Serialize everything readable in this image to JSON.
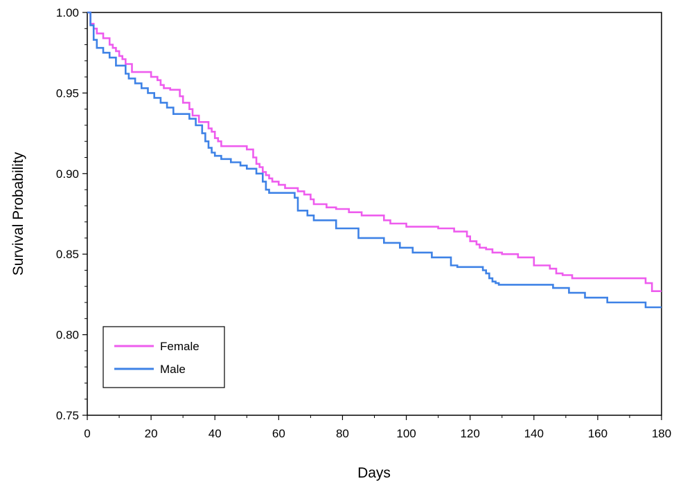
{
  "chart_data": {
    "type": "line",
    "title": "",
    "xlabel": "Days",
    "ylabel": "Survival Probability",
    "xlim": [
      0,
      180
    ],
    "ylim": [
      0.75,
      1.0
    ],
    "x_ticks": [
      0,
      20,
      40,
      60,
      80,
      100,
      120,
      140,
      160,
      180
    ],
    "y_ticks": [
      0.75,
      0.8,
      0.85,
      0.9,
      0.95,
      1.0
    ],
    "x_tick_labels": [
      "0",
      "20",
      "40",
      "60",
      "80",
      "100",
      "120",
      "140",
      "160",
      "180"
    ],
    "y_tick_labels": [
      "0.75",
      "0.80",
      "0.85",
      "0.90",
      "0.95",
      "1.00"
    ],
    "grid": false,
    "legend_position": "bottom-left",
    "step": true,
    "series": [
      {
        "name": "Female",
        "color": "#ee5cee",
        "x": [
          0,
          1,
          2,
          3,
          5,
          7,
          8,
          9,
          10,
          11,
          12,
          14,
          20,
          22,
          23,
          24,
          26,
          29,
          30,
          32,
          33,
          35,
          38,
          39,
          40,
          41,
          42,
          45,
          47,
          50,
          52,
          53,
          54,
          55,
          56,
          57,
          58,
          60,
          62,
          65,
          66,
          68,
          70,
          71,
          73,
          75,
          78,
          82,
          86,
          93,
          95,
          100,
          105,
          110,
          113,
          115,
          119,
          120,
          122,
          123,
          125,
          127,
          130,
          135,
          140,
          145,
          147,
          149,
          152,
          165,
          171,
          175,
          177,
          180
        ],
        "y": [
          1.0,
          0.993,
          0.99,
          0.987,
          0.984,
          0.98,
          0.978,
          0.976,
          0.973,
          0.971,
          0.968,
          0.963,
          0.96,
          0.958,
          0.955,
          0.953,
          0.952,
          0.948,
          0.944,
          0.94,
          0.936,
          0.932,
          0.928,
          0.926,
          0.922,
          0.92,
          0.917,
          0.917,
          0.917,
          0.915,
          0.91,
          0.906,
          0.904,
          0.901,
          0.899,
          0.897,
          0.895,
          0.893,
          0.891,
          0.891,
          0.889,
          0.887,
          0.884,
          0.881,
          0.881,
          0.879,
          0.878,
          0.876,
          0.874,
          0.871,
          0.869,
          0.867,
          0.867,
          0.866,
          0.866,
          0.864,
          0.861,
          0.858,
          0.856,
          0.854,
          0.853,
          0.851,
          0.85,
          0.848,
          0.843,
          0.841,
          0.838,
          0.837,
          0.835,
          0.835,
          0.835,
          0.832,
          0.827,
          0.827
        ]
      },
      {
        "name": "Male",
        "color": "#3e82e6",
        "x": [
          0,
          1,
          2,
          3,
          5,
          7,
          9,
          12,
          13,
          15,
          17,
          19,
          21,
          23,
          25,
          27,
          32,
          34,
          36,
          37,
          38,
          39,
          40,
          42,
          45,
          48,
          50,
          53,
          55,
          56,
          57,
          59,
          65,
          66,
          69,
          71,
          78,
          85,
          93,
          98,
          102,
          108,
          114,
          116,
          124,
          125,
          126,
          127,
          128,
          129,
          135,
          146,
          151,
          156,
          163,
          170,
          175,
          180
        ],
        "y": [
          1.0,
          0.992,
          0.983,
          0.978,
          0.975,
          0.972,
          0.967,
          0.962,
          0.959,
          0.956,
          0.953,
          0.95,
          0.947,
          0.944,
          0.941,
          0.937,
          0.934,
          0.93,
          0.925,
          0.92,
          0.916,
          0.913,
          0.911,
          0.909,
          0.907,
          0.905,
          0.903,
          0.9,
          0.895,
          0.89,
          0.888,
          0.888,
          0.885,
          0.877,
          0.874,
          0.871,
          0.866,
          0.86,
          0.857,
          0.854,
          0.851,
          0.848,
          0.843,
          0.842,
          0.84,
          0.838,
          0.835,
          0.833,
          0.832,
          0.831,
          0.831,
          0.829,
          0.826,
          0.823,
          0.82,
          0.82,
          0.817,
          0.817
        ]
      }
    ]
  }
}
